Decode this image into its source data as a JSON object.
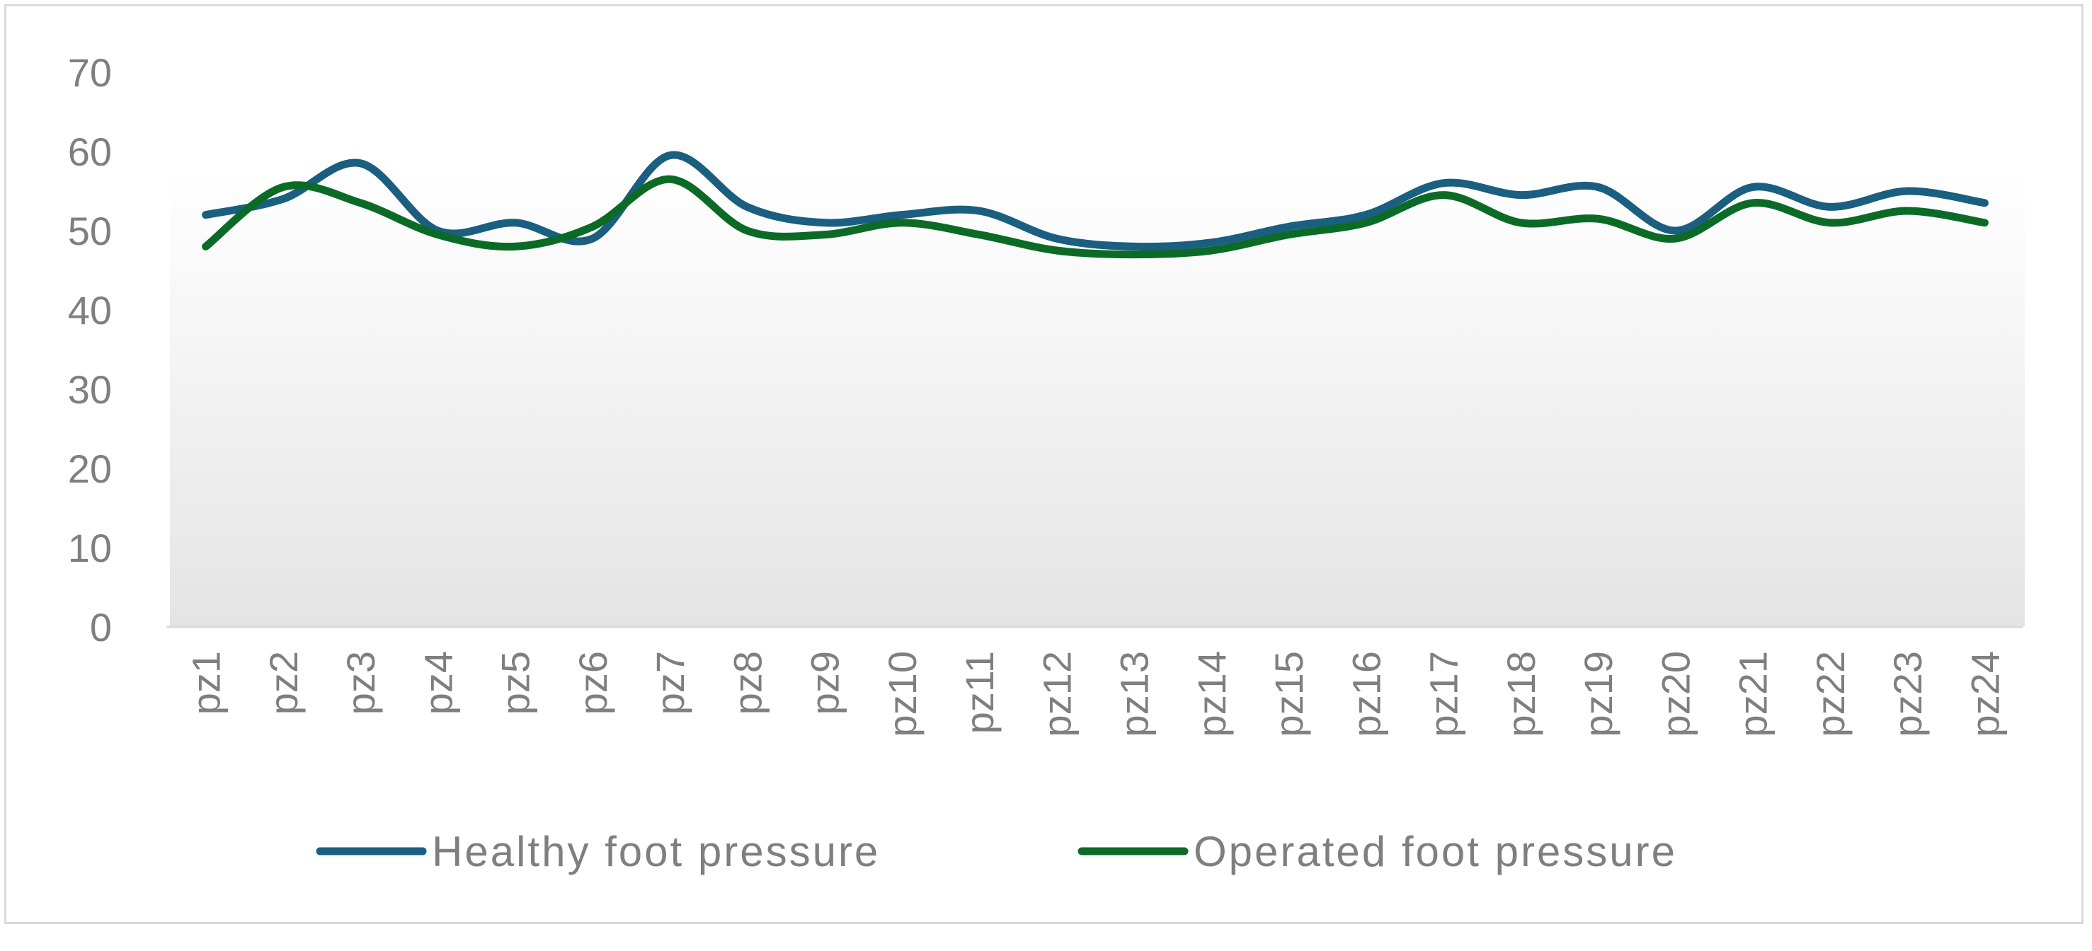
{
  "chart_data": {
    "type": "line",
    "title": "",
    "xlabel": "",
    "ylabel": "",
    "categories": [
      "pz1",
      "pz2",
      "pz3",
      "pz4",
      "pz5",
      "pz6",
      "pz7",
      "pz8",
      "pz9",
      "pz10",
      "pz11",
      "pz12",
      "pz13",
      "pz14",
      "pz15",
      "pz16",
      "pz17",
      "pz18",
      "pz19",
      "pz20",
      "pz21",
      "pz22",
      "pz23",
      "pz24"
    ],
    "y_ticks": [
      "0",
      "10",
      "20",
      "30",
      "40",
      "50",
      "60",
      "70"
    ],
    "ylim": [
      0,
      70
    ],
    "grid": false,
    "legend_position": "bottom",
    "series": [
      {
        "name": "Healthy foot pressure",
        "color": "#1a5e80",
        "values": [
          52,
          54,
          58.5,
          50,
          51,
          49,
          59.5,
          53,
          51,
          52,
          52.5,
          49,
          48,
          48.5,
          50.5,
          52,
          56,
          54.5,
          55.5,
          50,
          55.5,
          53,
          55,
          53.5
        ]
      },
      {
        "name": "Operated foot pressure",
        "color": "#0b6b26",
        "values": [
          48,
          55.5,
          53.5,
          49.5,
          48,
          50.5,
          56.5,
          50,
          49.5,
          51,
          49.5,
          47.5,
          47,
          47.5,
          49.5,
          51,
          54.5,
          51,
          51.5,
          49,
          53.5,
          51,
          52.5,
          51
        ]
      }
    ]
  }
}
